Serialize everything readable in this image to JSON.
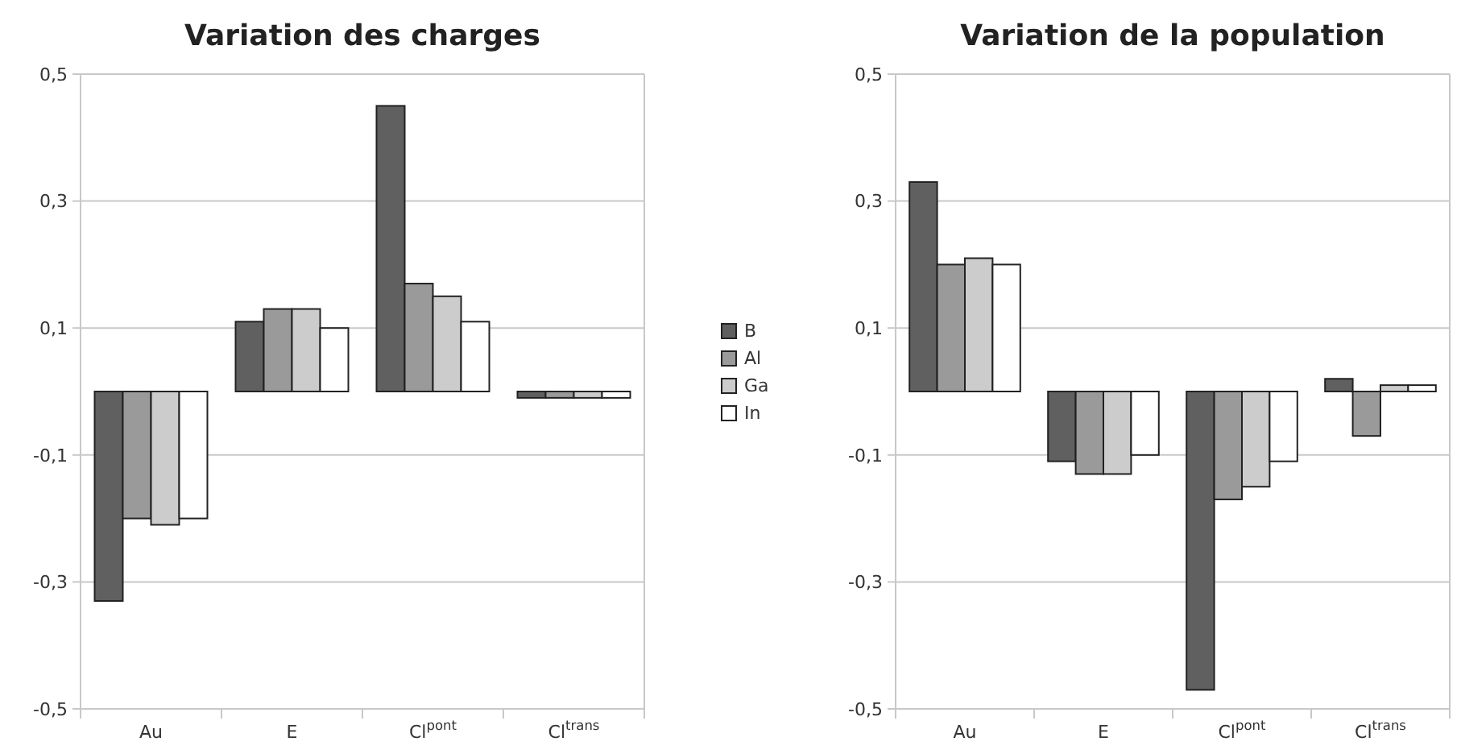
{
  "chart_data": [
    {
      "type": "bar",
      "title": "Variation des charges",
      "categories": [
        "Au",
        "E",
        "Cl$^{pont}$",
        "Cl$^{trans}$"
      ],
      "legend": "right",
      "grid": "y",
      "ylim": [
        -0.5,
        0.5
      ],
      "yticks": [
        {
          "value": -0.5,
          "label": "-0,5"
        },
        {
          "value": -0.3,
          "label": "-0,3"
        },
        {
          "value": -0.1,
          "label": "-0,1"
        },
        {
          "value": 0.1,
          "label": "0,1"
        },
        {
          "value": 0.3,
          "label": "0,3"
        },
        {
          "value": 0.5,
          "label": "0,5"
        }
      ],
      "series": [
        {
          "name": "B",
          "color": "#606060",
          "values": [
            -0.33,
            0.11,
            0.45,
            -0.01
          ]
        },
        {
          "name": "Al",
          "color": "#9a9a9a",
          "values": [
            -0.2,
            0.13,
            0.17,
            -0.01
          ]
        },
        {
          "name": "Ga",
          "color": "#cccccc",
          "values": [
            -0.21,
            0.13,
            0.15,
            -0.01
          ]
        },
        {
          "name": "In",
          "color": "#ffffff",
          "values": [
            -0.2,
            0.1,
            0.11,
            -0.01
          ]
        }
      ]
    },
    {
      "type": "bar",
      "title": "Variation de la population",
      "categories": [
        "Au",
        "E",
        "Cl$^{pont}$",
        "Cl$^{trans}$"
      ],
      "grid": "y",
      "ylim": [
        -0.5,
        0.5
      ],
      "yticks": [
        {
          "value": -0.5,
          "label": "-0,5"
        },
        {
          "value": -0.3,
          "label": "-0,3"
        },
        {
          "value": -0.1,
          "label": "-0,1"
        },
        {
          "value": 0.1,
          "label": "0,1"
        },
        {
          "value": 0.3,
          "label": "0,3"
        },
        {
          "value": 0.5,
          "label": "0,5"
        }
      ],
      "series": [
        {
          "color": "#606060",
          "values": [
            0.33,
            -0.11,
            -0.47,
            0.02
          ]
        },
        {
          "color": "#9a9a9a",
          "values": [
            0.2,
            -0.13,
            -0.17,
            -0.07
          ]
        },
        {
          "color": "#cccccc",
          "values": [
            0.21,
            -0.13,
            -0.15,
            0.01
          ]
        },
        {
          "color": "#ffffff",
          "values": [
            0.2,
            -0.1,
            -0.11,
            0.01
          ]
        }
      ]
    }
  ]
}
